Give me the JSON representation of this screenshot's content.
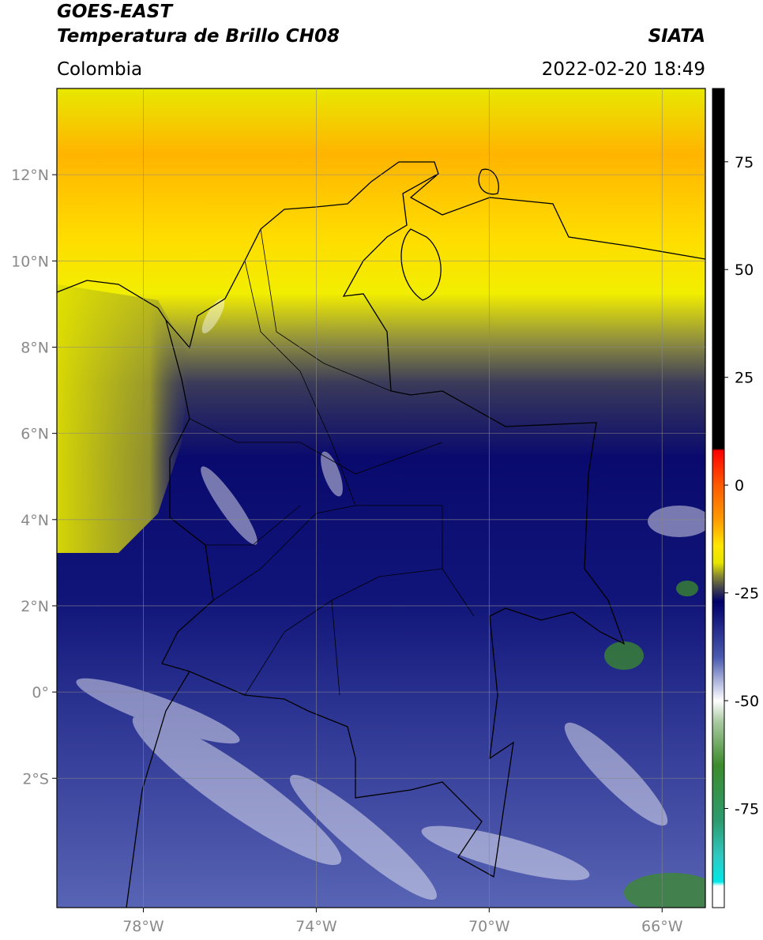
{
  "header": {
    "title_1": "GOES-EAST",
    "title_2": "Temperatura de Brillo CH08",
    "source": "SIATA",
    "region": "Colombia",
    "datetime": "2022-02-20 18:49"
  },
  "map": {
    "xlim": [
      -80,
      -65
    ],
    "ylim": [
      -5,
      14
    ],
    "xticks": [
      {
        "value": -78,
        "label": "78°W"
      },
      {
        "value": -74,
        "label": "74°W"
      },
      {
        "value": -70,
        "label": "70°W"
      },
      {
        "value": -66,
        "label": "66°W"
      }
    ],
    "yticks": [
      {
        "value": 12,
        "label": "12°N"
      },
      {
        "value": 10,
        "label": "10°N"
      },
      {
        "value": 8,
        "label": "8°N"
      },
      {
        "value": 6,
        "label": "6°N"
      },
      {
        "value": 4,
        "label": "4°N"
      },
      {
        "value": 2,
        "label": "2°N"
      },
      {
        "value": 0,
        "label": "0°"
      },
      {
        "value": -2,
        "label": "2°S"
      }
    ],
    "grid": true
  },
  "colorbar": {
    "lim": [
      -98,
      92
    ],
    "ticks": [
      75,
      50,
      25,
      0,
      -25,
      -50,
      -75
    ],
    "colormap": [
      {
        "value": 92,
        "color": "#000000"
      },
      {
        "value": 8.5,
        "color": "#000000"
      },
      {
        "value": 8,
        "color": "#ff0000"
      },
      {
        "value": 0,
        "color": "#ff5a00"
      },
      {
        "value": -8,
        "color": "#ff9a00"
      },
      {
        "value": -14,
        "color": "#ffe600"
      },
      {
        "value": -18,
        "color": "#e6e600"
      },
      {
        "value": -21,
        "color": "#8a8a30"
      },
      {
        "value": -24,
        "color": "#404050"
      },
      {
        "value": -27,
        "color": "#00006a"
      },
      {
        "value": -40,
        "color": "#4a5ab0"
      },
      {
        "value": -50,
        "color": "#ffffff"
      },
      {
        "value": -55,
        "color": "#a8c8a0"
      },
      {
        "value": -65,
        "color": "#3c8c2c"
      },
      {
        "value": -78,
        "color": "#2c9c70"
      },
      {
        "value": -86,
        "color": "#30c8c0"
      },
      {
        "value": -92,
        "color": "#00e8e8"
      },
      {
        "value": -93,
        "color": "#ffffff"
      },
      {
        "value": -98,
        "color": "#ffffff"
      }
    ]
  }
}
